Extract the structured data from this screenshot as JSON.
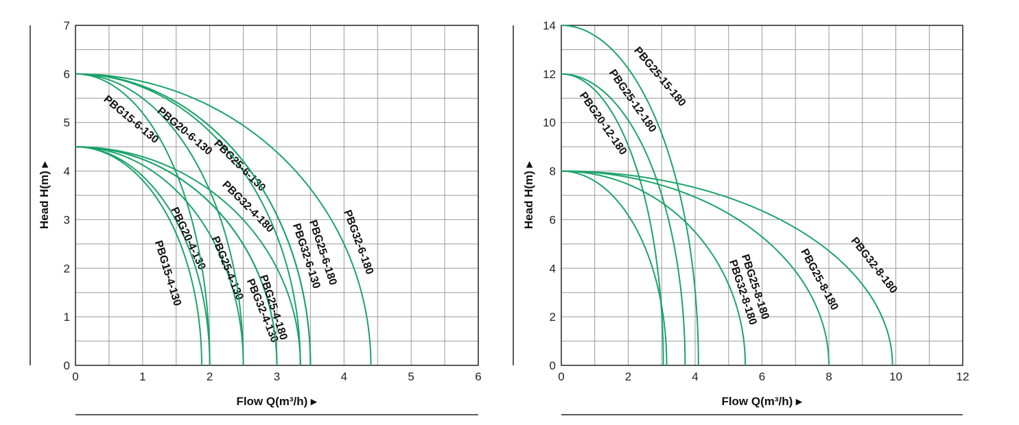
{
  "colors": {
    "curve": "#1aa36a",
    "grid": "#999999",
    "frame": "#222222"
  },
  "chart_data": [
    {
      "type": "line",
      "xlabel": "Flow  Q(m³/h)",
      "ylabel": "Head  H(m)",
      "xlim": [
        0,
        6
      ],
      "ylim": [
        0,
        7
      ],
      "xticks": [
        "0",
        "1",
        "2",
        "3",
        "4",
        "5",
        "6"
      ],
      "yticks": [
        "0",
        "1",
        "2",
        "3",
        "4",
        "5",
        "6",
        "7"
      ],
      "grid": true,
      "series": [
        {
          "name": "PBG15-4-130",
          "h0": 4.5,
          "qmax": 1.88
        },
        {
          "name": "PBG20-4-130",
          "h0": 4.5,
          "qmax": 2.0
        },
        {
          "name": "PBG25-4-130",
          "h0": 4.5,
          "qmax": 2.5
        },
        {
          "name": "PBG32-4-130",
          "h0": 4.5,
          "qmax": 3.0
        },
        {
          "name": "PBG25-4-180",
          "h0": 4.5,
          "qmax": 3.0
        },
        {
          "name": "PBG32-4-180",
          "h0": 4.5,
          "qmax": 3.35
        },
        {
          "name": "PBG15-6-130",
          "h0": 6.0,
          "qmax": 2.0
        },
        {
          "name": "PBG20-6-130",
          "h0": 6.0,
          "qmax": 2.5
        },
        {
          "name": "PBG25-6-130",
          "h0": 6.0,
          "qmax": 3.35
        },
        {
          "name": "PBG32-6-130",
          "h0": 6.0,
          "qmax": 3.5
        },
        {
          "name": "PBG25-6-180",
          "h0": 6.0,
          "qmax": 3.5
        },
        {
          "name": "PBG32-6-180",
          "h0": 6.0,
          "qmax": 4.4
        }
      ]
    },
    {
      "type": "line",
      "xlabel": "Flow  Q(m³/h)",
      "ylabel": "Head  H(m)",
      "xlim": [
        0,
        12
      ],
      "ylim": [
        0,
        14
      ],
      "xticks": [
        "0",
        "2",
        "4",
        "6",
        "8",
        "10",
        "12"
      ],
      "yticks": [
        "0",
        "2",
        "4",
        "6",
        "8",
        "10",
        "12",
        "14"
      ],
      "grid": true,
      "series": [
        {
          "name": "PBG20-12-180",
          "h0": 12.0,
          "qmax": 3.05
        },
        {
          "name": "PBG25-12-180",
          "h0": 12.0,
          "qmax": 3.7
        },
        {
          "name": "PBG25-15-180",
          "h0": 14.0,
          "qmax": 4.1
        },
        {
          "name": "PBG32-8-180",
          "h0": 8.0,
          "qmax": 3.15
        },
        {
          "name": "PBG25-8-180",
          "h0": 8.0,
          "qmax": 5.5
        },
        {
          "name": "PBG25-8-180",
          "h0": 8.0,
          "qmax": 8.0
        },
        {
          "name": "PBG32-8-180",
          "h0": 8.0,
          "qmax": 9.9
        }
      ]
    }
  ]
}
